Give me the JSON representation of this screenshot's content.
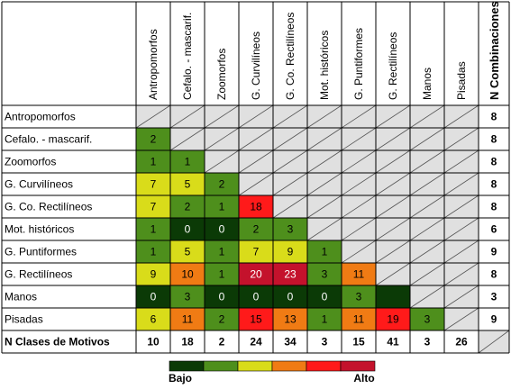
{
  "chart_data": {
    "type": "heatmap",
    "columns": [
      "Antropomorfos",
      "Cefalo. - mascarif.",
      "Zoomorfos",
      "G. Curvilíneos",
      "G. Co.  Rectilíneos",
      "Mot. históricos",
      "G. Puntiformes",
      "G. Rectilíneos",
      "Manos",
      "Pisadas"
    ],
    "total_column_label": "N Combinaciones",
    "rows": [
      "Antropomorfos",
      "Cefalo. - mascarif.",
      "Zoomorfos",
      "G. Curvilíneos",
      "G. Co.  Rectilíneos",
      "Mot. históricos",
      "G. Puntiformes",
      "G. Rectilíneos",
      "Manos",
      "Pisadas"
    ],
    "values": [
      [],
      [
        2
      ],
      [
        1,
        1
      ],
      [
        7,
        5,
        2
      ],
      [
        7,
        2,
        1,
        18
      ],
      [
        1,
        0,
        0,
        2,
        3
      ],
      [
        1,
        5,
        1,
        7,
        9,
        1
      ],
      [
        9,
        10,
        1,
        20,
        23,
        3,
        11
      ],
      [
        0,
        3,
        0,
        0,
        0,
        0,
        3,
        null
      ],
      [
        6,
        11,
        2,
        15,
        13,
        1,
        11,
        19,
        3
      ]
    ],
    "combinations": [
      8,
      8,
      8,
      8,
      8,
      6,
      9,
      8,
      3,
      9
    ],
    "totals_row_label": "N Clases de Motivos",
    "totals": [
      10,
      18,
      2,
      24,
      34,
      3,
      15,
      41,
      3,
      26
    ],
    "legend": {
      "low_label": "Bajo",
      "high_label": "Alto",
      "colors": [
        "#0b3a06",
        "#4e8f1c",
        "#d9dc1a",
        "#f07b14",
        "#ff1a1a",
        "#c4122c"
      ]
    },
    "colors": {
      "diagonal_fill": "#e0e0e0",
      "grid": "#000000",
      "text_on_dark": "#ffffff",
      "text_on_light": "#000000"
    }
  }
}
